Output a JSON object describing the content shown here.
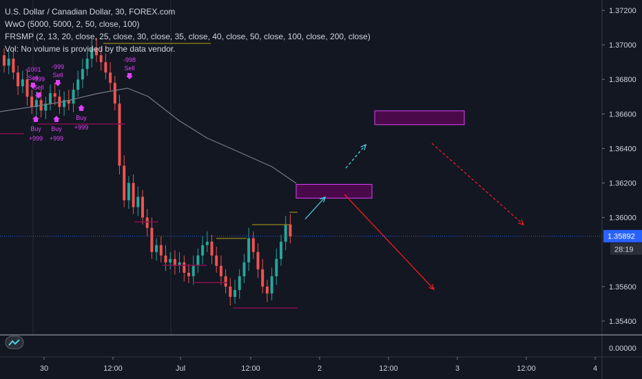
{
  "legend": {
    "symbol": "U.S. Dollar / Canadian Dollar, 30, FOREX.com",
    "wwo": "WwO (5000, 5000, 2, 50, close, 100)",
    "frsmp": "FRSMP (2, 13, 20, close, 25, close, 30, close, 35, close, 40, close, 50, close, 100, close, 200, close)",
    "vol": "Vol: No volume is provided by the data vendor."
  },
  "price_axis": {
    "ticks": [
      "1.37200",
      "1.37000",
      "1.36800",
      "1.36600",
      "1.36400",
      "1.36200",
      "1.36000",
      "1.35600",
      "1.35400"
    ],
    "current_price": "1.35892",
    "countdown": "28:19",
    "lower_pane_tick": "0.00000"
  },
  "time_axis": {
    "ticks": [
      "30",
      "12:00",
      "Jul",
      "12:00",
      "2",
      "12:00",
      "3",
      "12:00",
      "4"
    ]
  },
  "signals": [
    {
      "label": "Sell",
      "value": "-1001"
    },
    {
      "label": "Sell",
      "value": "-999"
    },
    {
      "label": "Sell",
      "value": "-999"
    },
    {
      "label": "Sell",
      "value": "-998"
    },
    {
      "label": "Buy",
      "value": "+999"
    },
    {
      "label": "Buy",
      "value": "+999"
    },
    {
      "label": "Buy",
      "value": "+999"
    }
  ],
  "colors": {
    "background": "#131722",
    "up_candle": "#26a69a",
    "down_candle": "#ef5350",
    "ma_line": "#787b86",
    "zone_fill": "#4a0a4a",
    "zone_border": "#e040fb",
    "arrow_up": "#4dd0e1",
    "arrow_down": "#ef1c24",
    "price_line": "#2962ff"
  },
  "chart_data": {
    "type": "candlestick",
    "ylim": [
      1.3532,
      1.3726
    ],
    "x_positions": [
      "30",
      "12:00",
      "Jul",
      "12:00",
      "2",
      "12:00",
      "3",
      "12:00",
      "4"
    ],
    "last_price": 1.35892,
    "close_path": [
      1.3688,
      1.3692,
      1.3684,
      1.3676,
      1.368,
      1.367,
      1.3664,
      1.3668,
      1.3662,
      1.3666,
      1.3672,
      1.367,
      1.3664,
      1.3668,
      1.3666,
      1.3674,
      1.368,
      1.3686,
      1.3692,
      1.3698,
      1.3694,
      1.369,
      1.3684,
      1.3678,
      1.3666,
      1.363,
      1.361,
      1.362,
      1.3606,
      1.3612,
      1.36,
      1.3594,
      1.358,
      1.3584,
      1.3578,
      1.3574,
      1.3576,
      1.3572,
      1.3574,
      1.3568,
      1.3566,
      1.3572,
      1.3578,
      1.3584,
      1.3586,
      1.3578,
      1.3572,
      1.3566,
      1.356,
      1.3554,
      1.3558,
      1.3566,
      1.3574,
      1.3588,
      1.358,
      1.357,
      1.356,
      1.3556,
      1.3566,
      1.3576,
      1.3586,
      1.3596,
      1.3589
    ],
    "zones": [
      {
        "y_top": 1.36192,
        "y_bottom": 1.36112
      },
      {
        "y_top": 1.36618,
        "y_bottom": 1.36538
      }
    ]
  }
}
